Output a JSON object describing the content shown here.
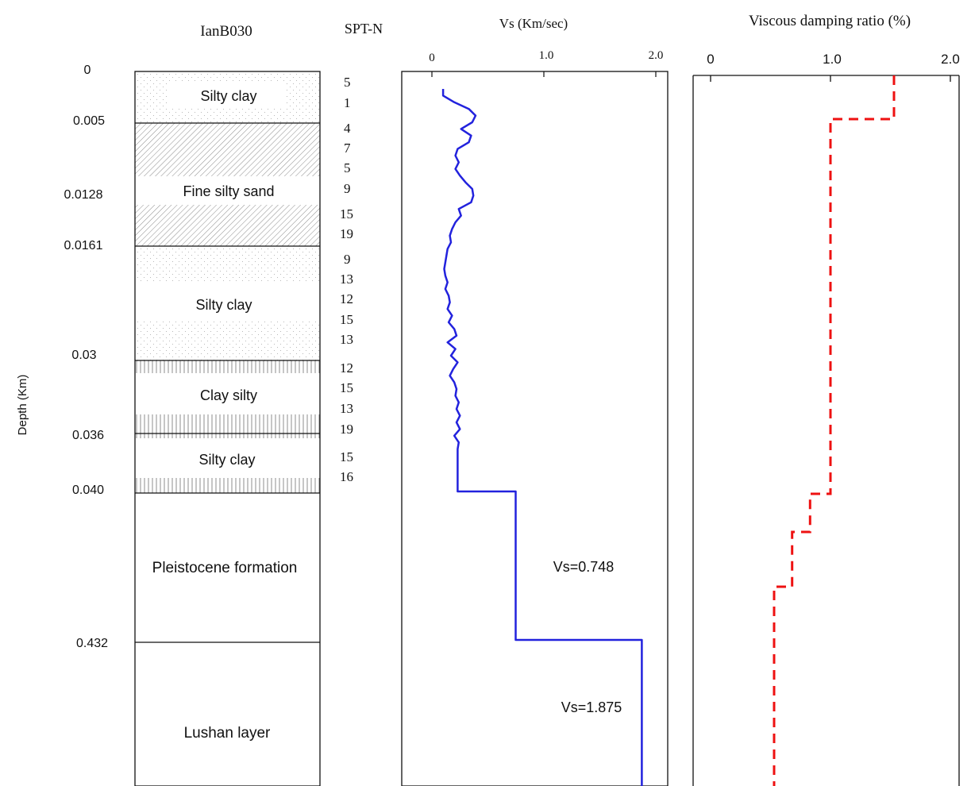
{
  "borehole": {
    "id": "IanB030",
    "depth_axis_label": "Depth (Km)",
    "spt_header": "SPT-N",
    "depth_ticks": [
      "0",
      "0.005",
      "0.0128",
      "0.0161",
      "0.03",
      "0.036",
      "0.040",
      "0.432"
    ],
    "layers": [
      {
        "name": "Silty clay",
        "pattern": "dots"
      },
      {
        "name": "Fine silty sand",
        "pattern": "hatch"
      },
      {
        "name": "Silty clay",
        "pattern": "dots"
      },
      {
        "name": "Clay silty",
        "pattern": "vertical"
      },
      {
        "name": "Silty clay",
        "pattern": "vertical"
      },
      {
        "name": "Pleistocene formation",
        "pattern": "none"
      },
      {
        "name": "Lushan layer",
        "pattern": "none"
      }
    ],
    "spt_values": [
      "5",
      "1",
      "4",
      "7",
      "5",
      "9",
      "15",
      "19",
      "9",
      "13",
      "12",
      "15",
      "13",
      "12",
      "15",
      "13",
      "19",
      "15",
      "16"
    ]
  },
  "chart_data": [
    {
      "type": "line",
      "title": "Vs (Km/sec)",
      "xlabel": "Vs (Km/sec)",
      "ylabel": "Depth (Km)",
      "xlim": [
        0,
        2.0
      ],
      "xticks": [
        "0",
        "1.0",
        "2.0"
      ],
      "series": [
        {
          "color": "#2222dd",
          "near_surface_profile_x": [
            0.1,
            0.1,
            0.2,
            0.33,
            0.39,
            0.36,
            0.26,
            0.35,
            0.33,
            0.23,
            0.21,
            0.24,
            0.21,
            0.25,
            0.3,
            0.36,
            0.37,
            0.35,
            0.24,
            0.26,
            0.21,
            0.18,
            0.16,
            0.17,
            0.14,
            0.13,
            0.12,
            0.11,
            0.12,
            0.14,
            0.12,
            0.15,
            0.16,
            0.14,
            0.18,
            0.15,
            0.2,
            0.22,
            0.14,
            0.21,
            0.17,
            0.23,
            0.19,
            0.16,
            0.2,
            0.22,
            0.21,
            0.24,
            0.22,
            0.25,
            0.22,
            0.25,
            0.2,
            0.24,
            0.23,
            0.23
          ],
          "upper_step_vs": 0.23,
          "deep_steps": [
            {
              "label": "Vs=0.748",
              "value": 0.748
            },
            {
              "label": "Vs=1.875",
              "value": 1.875
            }
          ]
        }
      ]
    },
    {
      "type": "line",
      "title": "Viscous damping ratio (%)",
      "xlabel": "Viscous damping ratio (%)",
      "xlim": [
        0,
        2.0
      ],
      "xticks": [
        "0",
        "1.0",
        "2.0"
      ],
      "series": [
        {
          "color": "#ee1111",
          "style": "dashed",
          "step_values": [
            1.53,
            1.0,
            0.83,
            0.68,
            0.53
          ]
        }
      ]
    }
  ]
}
